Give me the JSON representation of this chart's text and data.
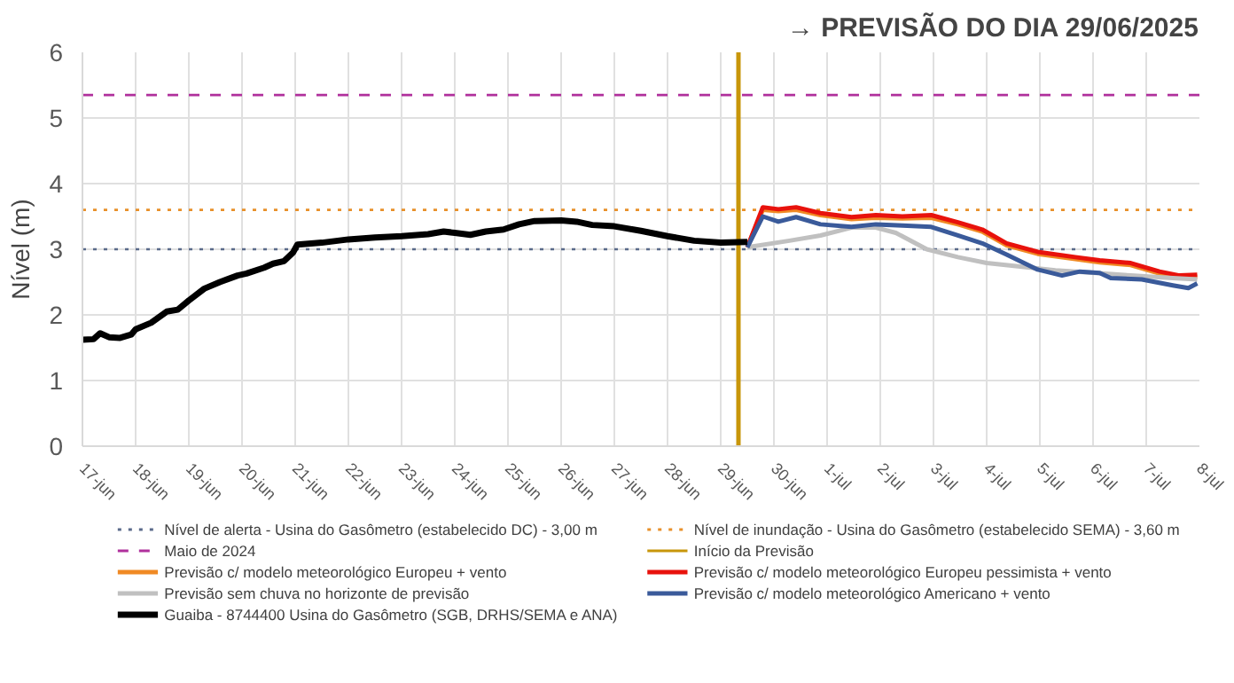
{
  "chart_data": {
    "type": "line",
    "title": "→ PREVISÃO DO DIA 29/06/2025",
    "ylabel": "Nível (m)",
    "xlim": [
      "2025-06-17",
      "2025-07-08"
    ],
    "ylim": [
      0,
      6
    ],
    "yticks": [
      0,
      1,
      2,
      3,
      4,
      5,
      6
    ],
    "xticks": [
      {
        "value": "2025-06-17",
        "label": "17-jun"
      },
      {
        "value": "2025-06-18",
        "label": "18-jun"
      },
      {
        "value": "2025-06-19",
        "label": "19-jun"
      },
      {
        "value": "2025-06-20",
        "label": "20-jun"
      },
      {
        "value": "2025-06-21",
        "label": "21-jun"
      },
      {
        "value": "2025-06-22",
        "label": "22-jun"
      },
      {
        "value": "2025-06-23",
        "label": "23-jun"
      },
      {
        "value": "2025-06-24",
        "label": "24-jun"
      },
      {
        "value": "2025-06-25",
        "label": "25-jun"
      },
      {
        "value": "2025-06-26",
        "label": "26-jun"
      },
      {
        "value": "2025-06-27",
        "label": "27-jun"
      },
      {
        "value": "2025-06-28",
        "label": "28-jun"
      },
      {
        "value": "2025-06-29",
        "label": "29-jun"
      },
      {
        "value": "2025-06-30",
        "label": "30-jun"
      },
      {
        "value": "2025-07-01",
        "label": "1-jul"
      },
      {
        "value": "2025-07-02",
        "label": "2-jul"
      },
      {
        "value": "2025-07-03",
        "label": "3-jul"
      },
      {
        "value": "2025-07-04",
        "label": "4-jul"
      },
      {
        "value": "2025-07-05",
        "label": "5-jul"
      },
      {
        "value": "2025-07-06",
        "label": "6-jul"
      },
      {
        "value": "2025-07-07",
        "label": "7-jul"
      },
      {
        "value": "2025-07-08",
        "label": "8-jul"
      }
    ],
    "grid": true,
    "legend": "bottom",
    "ref_lines": [
      {
        "axis": "y",
        "value": 3.0,
        "label": "Nível de alerta - Usina do Gasômetro (estabelecido DC) - 3,00 m",
        "color": "#5a6a8a",
        "line_style": "dotted"
      },
      {
        "axis": "y",
        "value": 3.6,
        "label": "Nível de inundação - Usina do Gasômetro (estabelecido SEMA) - 3,60 m",
        "color": "#e8902a",
        "line_style": "dotted"
      },
      {
        "axis": "y",
        "value": 5.35,
        "label": "Maio de 2024",
        "color": "#b0309c",
        "line_style": "dashed"
      },
      {
        "axis": "x",
        "value": "2025-06-29T08:00",
        "label": "Início da Previsão",
        "color": "#c8960a",
        "line_style": "solid"
      }
    ],
    "series": [
      {
        "name": "Previsão c/ modelo meteorológico Europeu + vento",
        "color": "#f08a24",
        "x": [
          "2025-06-29T12:00",
          "2025-06-29T19:00",
          "2025-06-30T02:00",
          "2025-06-30T10:00",
          "2025-06-30T21:00",
          "2025-07-01T11:00",
          "2025-07-01T22:00",
          "2025-07-02T10:00",
          "2025-07-02T23:00",
          "2025-07-03T11:00",
          "2025-07-03T22:00",
          "2025-07-04T09:00",
          "2025-07-04T23:00",
          "2025-07-05T16:00",
          "2025-07-06T03:00",
          "2025-07-06T17:00",
          "2025-07-07T06:00",
          "2025-07-07T15:00",
          "2025-07-07T23:00"
        ],
        "values": [
          3.03,
          3.6,
          3.58,
          3.6,
          3.52,
          3.46,
          3.48,
          3.47,
          3.48,
          3.38,
          3.27,
          3.06,
          2.93,
          2.85,
          2.8,
          2.76,
          2.63,
          2.57,
          2.58
        ]
      },
      {
        "name": "Previsão c/ modelo meteorológico Europeu pessimista + vento",
        "color": "#e8120c",
        "x": [
          "2025-06-29T12:00",
          "2025-06-29T19:00",
          "2025-06-30T02:00",
          "2025-06-30T10:00",
          "2025-06-30T21:00",
          "2025-07-01T11:00",
          "2025-07-01T22:00",
          "2025-07-02T10:00",
          "2025-07-02T23:00",
          "2025-07-03T11:00",
          "2025-07-03T22:00",
          "2025-07-04T09:00",
          "2025-07-04T23:00",
          "2025-07-05T16:00",
          "2025-07-06T03:00",
          "2025-07-06T17:00",
          "2025-07-07T06:00",
          "2025-07-07T15:00",
          "2025-07-07T23:00"
        ],
        "values": [
          3.03,
          3.64,
          3.61,
          3.64,
          3.55,
          3.49,
          3.52,
          3.5,
          3.52,
          3.41,
          3.3,
          3.09,
          2.96,
          2.88,
          2.83,
          2.79,
          2.66,
          2.6,
          2.61
        ]
      },
      {
        "name": "Previsão sem chuva no horizonte de previsão",
        "color": "#c0c0c0",
        "x": [
          "2025-06-29T12:00",
          "2025-06-30T07:00",
          "2025-06-30T21:00",
          "2025-07-01T11:00",
          "2025-07-01T22:00",
          "2025-07-02T07:00",
          "2025-07-02T21:00",
          "2025-07-03T11:00",
          "2025-07-04T00:00",
          "2025-07-04T17:00",
          "2025-07-05T07:00",
          "2025-07-05T21:00",
          "2025-07-06T17:00",
          "2025-07-07T12:00",
          "2025-07-07T23:00"
        ],
        "values": [
          3.03,
          3.13,
          3.21,
          3.33,
          3.33,
          3.25,
          3.0,
          2.88,
          2.79,
          2.73,
          2.68,
          2.65,
          2.6,
          2.56,
          2.54
        ]
      },
      {
        "name": "Previsão c/ modelo meteorológico Americano + vento",
        "color": "#3a5a9a",
        "x": [
          "2025-06-29T12:00",
          "2025-06-29T19:00",
          "2025-06-30T02:00",
          "2025-06-30T10:00",
          "2025-06-30T21:00",
          "2025-07-01T11:00",
          "2025-07-01T22:00",
          "2025-07-02T10:00",
          "2025-07-02T23:00",
          "2025-07-03T11:00",
          "2025-07-03T22:00",
          "2025-07-04T09:00",
          "2025-07-04T23:00",
          "2025-07-05T10:00",
          "2025-07-05T18:00",
          "2025-07-06T03:00",
          "2025-07-06T08:00",
          "2025-07-06T22:00",
          "2025-07-07T12:00",
          "2025-07-07T19:00",
          "2025-07-07T23:00"
        ],
        "values": [
          3.03,
          3.5,
          3.42,
          3.49,
          3.38,
          3.34,
          3.38,
          3.36,
          3.34,
          3.21,
          3.09,
          2.92,
          2.69,
          2.6,
          2.66,
          2.64,
          2.56,
          2.54,
          2.45,
          2.41,
          2.48
        ]
      },
      {
        "name": "Guaiba - 8744400 Usina do Gasômetro (SGB, DRHS/SEMA e ANA)",
        "color": "#000000",
        "x": [
          "2025-06-17T00:00",
          "2025-06-17T05:00",
          "2025-06-17T08:00",
          "2025-06-17T12:00",
          "2025-06-17T17:00",
          "2025-06-17T22:00",
          "2025-06-18T00:00",
          "2025-06-18T07:00",
          "2025-06-18T14:00",
          "2025-06-18T19:00",
          "2025-06-19T00:00",
          "2025-06-19T07:00",
          "2025-06-19T14:00",
          "2025-06-19T22:00",
          "2025-06-20T02:00",
          "2025-06-20T10:00",
          "2025-06-20T14:00",
          "2025-06-20T19:00",
          "2025-06-20T23:00",
          "2025-06-21T01:00",
          "2025-06-21T12:00",
          "2025-06-22T00:00",
          "2025-06-22T12:00",
          "2025-06-23T00:00",
          "2025-06-23T12:00",
          "2025-06-23T19:00",
          "2025-06-24T00:00",
          "2025-06-24T07:00",
          "2025-06-24T14:00",
          "2025-06-24T22:00",
          "2025-06-25T05:00",
          "2025-06-25T12:00",
          "2025-06-26T00:00",
          "2025-06-26T07:00",
          "2025-06-26T14:00",
          "2025-06-27T00:00",
          "2025-06-27T12:00",
          "2025-06-28T00:00",
          "2025-06-28T12:00",
          "2025-06-29T00:00",
          "2025-06-29T12:00"
        ],
        "values": [
          1.62,
          1.63,
          1.72,
          1.66,
          1.65,
          1.7,
          1.78,
          1.88,
          2.05,
          2.08,
          2.22,
          2.4,
          2.5,
          2.6,
          2.63,
          2.72,
          2.78,
          2.82,
          2.95,
          3.07,
          3.1,
          3.15,
          3.18,
          3.2,
          3.23,
          3.27,
          3.25,
          3.22,
          3.27,
          3.3,
          3.38,
          3.43,
          3.44,
          3.42,
          3.37,
          3.35,
          3.28,
          3.2,
          3.13,
          3.1,
          3.11
        ]
      }
    ]
  }
}
